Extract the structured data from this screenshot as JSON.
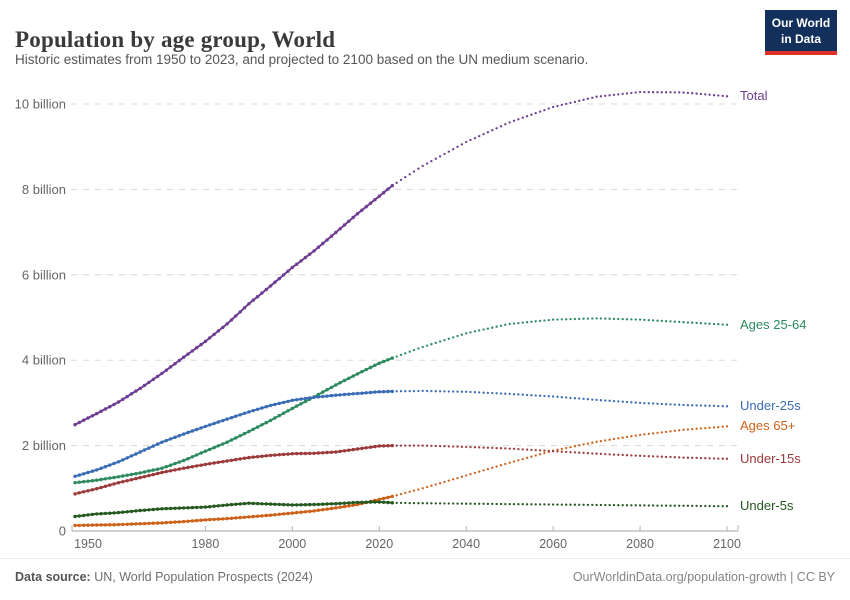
{
  "header": {
    "title": "Population by age group, World",
    "subtitle": "Historic estimates from 1950 to 2023, and projected to 2100 based on the UN medium scenario."
  },
  "logo": {
    "line1": "Our World",
    "line2": "in Data",
    "bg_color": "#12305b",
    "accent_color": "#e0312a"
  },
  "footer": {
    "source_label": "Data source:",
    "source_text": " UN, World Population Prospects (2024)",
    "link_text": "OurWorldinData.org/population-growth | CC BY"
  },
  "chart_data": {
    "type": "line",
    "title": "Population by age group, World",
    "xlabel": "",
    "ylabel": "",
    "unit": "billion people",
    "grid": true,
    "legend_position": "right-edge-line-labels",
    "x_range": [
      1950,
      2100
    ],
    "y_range_billions": [
      0,
      10.5
    ],
    "x_ticks": [
      1950,
      1980,
      2000,
      2020,
      2040,
      2060,
      2080,
      2100
    ],
    "y_ticks": [
      {
        "v": 0,
        "label": "0"
      },
      {
        "v": 2,
        "label": "2 billion"
      },
      {
        "v": 4,
        "label": "4 billion"
      },
      {
        "v": 6,
        "label": "6 billion"
      },
      {
        "v": 8,
        "label": "8 billion"
      },
      {
        "v": 10,
        "label": "10 billion"
      }
    ],
    "projection_start_year": 2023,
    "series": [
      {
        "id": "total",
        "label": "Total",
        "color": "#6d3e91",
        "historic": [
          [
            1950,
            2.49
          ],
          [
            1955,
            2.75
          ],
          [
            1960,
            3.02
          ],
          [
            1965,
            3.34
          ],
          [
            1970,
            3.69
          ],
          [
            1975,
            4.07
          ],
          [
            1980,
            4.44
          ],
          [
            1985,
            4.85
          ],
          [
            1990,
            5.32
          ],
          [
            1995,
            5.74
          ],
          [
            2000,
            6.17
          ],
          [
            2005,
            6.56
          ],
          [
            2010,
            6.99
          ],
          [
            2015,
            7.43
          ],
          [
            2020,
            7.84
          ],
          [
            2023,
            8.09
          ]
        ],
        "projected": [
          [
            2023,
            8.09
          ],
          [
            2030,
            8.55
          ],
          [
            2040,
            9.11
          ],
          [
            2050,
            9.57
          ],
          [
            2060,
            9.93
          ],
          [
            2070,
            10.17
          ],
          [
            2080,
            10.28
          ],
          [
            2090,
            10.27
          ],
          [
            2100,
            10.18
          ]
        ]
      },
      {
        "id": "ages-25-64",
        "label": "Ages 25-64",
        "color": "#2c8a5e",
        "historic": [
          [
            1950,
            1.13
          ],
          [
            1955,
            1.19
          ],
          [
            1960,
            1.27
          ],
          [
            1965,
            1.36
          ],
          [
            1970,
            1.47
          ],
          [
            1975,
            1.65
          ],
          [
            1980,
            1.87
          ],
          [
            1985,
            2.08
          ],
          [
            1990,
            2.33
          ],
          [
            1995,
            2.59
          ],
          [
            2000,
            2.87
          ],
          [
            2005,
            3.14
          ],
          [
            2010,
            3.42
          ],
          [
            2015,
            3.68
          ],
          [
            2020,
            3.93
          ],
          [
            2023,
            4.05
          ]
        ],
        "projected": [
          [
            2023,
            4.05
          ],
          [
            2030,
            4.31
          ],
          [
            2040,
            4.63
          ],
          [
            2050,
            4.85
          ],
          [
            2060,
            4.95
          ],
          [
            2070,
            4.98
          ],
          [
            2080,
            4.95
          ],
          [
            2090,
            4.89
          ],
          [
            2100,
            4.83
          ]
        ]
      },
      {
        "id": "under-25s",
        "label": "Under-25s",
        "color": "#3a6cb5",
        "historic": [
          [
            1950,
            1.28
          ],
          [
            1955,
            1.43
          ],
          [
            1960,
            1.62
          ],
          [
            1965,
            1.85
          ],
          [
            1970,
            2.08
          ],
          [
            1975,
            2.27
          ],
          [
            1980,
            2.45
          ],
          [
            1985,
            2.62
          ],
          [
            1990,
            2.79
          ],
          [
            1995,
            2.94
          ],
          [
            2000,
            3.06
          ],
          [
            2005,
            3.13
          ],
          [
            2010,
            3.18
          ],
          [
            2015,
            3.22
          ],
          [
            2020,
            3.26
          ],
          [
            2023,
            3.27
          ]
        ],
        "projected": [
          [
            2023,
            3.27
          ],
          [
            2030,
            3.28
          ],
          [
            2040,
            3.26
          ],
          [
            2050,
            3.21
          ],
          [
            2060,
            3.15
          ],
          [
            2070,
            3.07
          ],
          [
            2080,
            3.0
          ],
          [
            2090,
            2.95
          ],
          [
            2100,
            2.92
          ]
        ]
      },
      {
        "id": "ages-65plus",
        "label": "Ages 65+",
        "color": "#ce6118",
        "historic": [
          [
            1950,
            0.13
          ],
          [
            1955,
            0.14
          ],
          [
            1960,
            0.15
          ],
          [
            1965,
            0.17
          ],
          [
            1970,
            0.19
          ],
          [
            1975,
            0.22
          ],
          [
            1980,
            0.26
          ],
          [
            1985,
            0.29
          ],
          [
            1990,
            0.33
          ],
          [
            1995,
            0.37
          ],
          [
            2000,
            0.42
          ],
          [
            2005,
            0.47
          ],
          [
            2010,
            0.54
          ],
          [
            2015,
            0.62
          ],
          [
            2020,
            0.74
          ],
          [
            2023,
            0.81
          ]
        ],
        "projected": [
          [
            2023,
            0.81
          ],
          [
            2030,
            1.0
          ],
          [
            2040,
            1.3
          ],
          [
            2050,
            1.6
          ],
          [
            2060,
            1.88
          ],
          [
            2070,
            2.09
          ],
          [
            2080,
            2.25
          ],
          [
            2090,
            2.37
          ],
          [
            2100,
            2.45
          ]
        ]
      },
      {
        "id": "under-15s",
        "label": "Under-15s",
        "color": "#9c3a3a",
        "historic": [
          [
            1950,
            0.87
          ],
          [
            1955,
            0.99
          ],
          [
            1960,
            1.13
          ],
          [
            1965,
            1.25
          ],
          [
            1970,
            1.37
          ],
          [
            1975,
            1.47
          ],
          [
            1980,
            1.56
          ],
          [
            1985,
            1.64
          ],
          [
            1990,
            1.72
          ],
          [
            1995,
            1.77
          ],
          [
            2000,
            1.81
          ],
          [
            2005,
            1.82
          ],
          [
            2010,
            1.85
          ],
          [
            2015,
            1.92
          ],
          [
            2020,
            1.99
          ],
          [
            2023,
            2.0
          ]
        ],
        "projected": [
          [
            2023,
            2.0
          ],
          [
            2030,
            2.0
          ],
          [
            2040,
            1.97
          ],
          [
            2050,
            1.93
          ],
          [
            2060,
            1.87
          ],
          [
            2070,
            1.81
          ],
          [
            2080,
            1.76
          ],
          [
            2090,
            1.72
          ],
          [
            2100,
            1.69
          ]
        ]
      },
      {
        "id": "under-5s",
        "label": "Under-5s",
        "color": "#24591f",
        "historic": [
          [
            1950,
            0.34
          ],
          [
            1955,
            0.4
          ],
          [
            1960,
            0.43
          ],
          [
            1965,
            0.48
          ],
          [
            1970,
            0.52
          ],
          [
            1975,
            0.54
          ],
          [
            1980,
            0.56
          ],
          [
            1985,
            0.61
          ],
          [
            1990,
            0.65
          ],
          [
            1995,
            0.63
          ],
          [
            2000,
            0.61
          ],
          [
            2005,
            0.62
          ],
          [
            2010,
            0.64
          ],
          [
            2015,
            0.67
          ],
          [
            2020,
            0.68
          ],
          [
            2023,
            0.66
          ]
        ],
        "projected": [
          [
            2023,
            0.66
          ],
          [
            2030,
            0.65
          ],
          [
            2040,
            0.64
          ],
          [
            2050,
            0.63
          ],
          [
            2060,
            0.62
          ],
          [
            2070,
            0.61
          ],
          [
            2080,
            0.6
          ],
          [
            2090,
            0.59
          ],
          [
            2100,
            0.58
          ]
        ]
      }
    ]
  }
}
